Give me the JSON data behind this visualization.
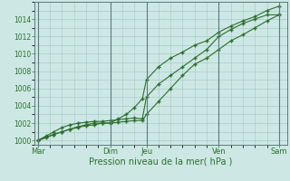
{
  "xlabel": "Pression niveau de la mer( hPa )",
  "bg_color": "#cde8e4",
  "grid_color": "#aaccca",
  "line_color": "#2d6e2d",
  "ylim": [
    999.5,
    1016.0
  ],
  "yticks": [
    1000,
    1002,
    1004,
    1006,
    1008,
    1010,
    1012,
    1014
  ],
  "day_labels": [
    "Mar",
    "Dim",
    "Jeu",
    "Ven",
    "Sam"
  ],
  "day_x": [
    0,
    72,
    108,
    180,
    240
  ],
  "vline_color": "#5a7a7a",
  "line1_x": [
    0,
    8,
    16,
    24,
    32,
    40,
    48,
    56,
    64,
    72,
    80,
    88,
    96,
    104,
    108,
    120,
    132,
    144,
    156,
    168,
    180,
    192,
    204,
    216,
    228,
    240
  ],
  "line1_y": [
    1000,
    1000.4,
    1000.7,
    1001.0,
    1001.3,
    1001.6,
    1001.8,
    1002.0,
    1002.0,
    1002.0,
    1002.1,
    1002.2,
    1002.3,
    1002.3,
    1003.0,
    1004.5,
    1006.0,
    1007.5,
    1008.8,
    1009.5,
    1010.5,
    1011.5,
    1012.2,
    1013.0,
    1013.8,
    1014.5
  ],
  "line2_x": [
    0,
    8,
    16,
    24,
    32,
    40,
    48,
    56,
    64,
    72,
    80,
    88,
    96,
    104,
    108,
    120,
    132,
    144,
    156,
    168,
    180,
    192,
    204,
    216,
    228,
    240
  ],
  "line2_y": [
    1000,
    1000.5,
    1001.0,
    1001.5,
    1001.8,
    1002.0,
    1002.1,
    1002.2,
    1002.2,
    1002.3,
    1002.4,
    1002.5,
    1002.6,
    1002.5,
    1005.0,
    1006.5,
    1007.5,
    1008.5,
    1009.5,
    1010.5,
    1012.0,
    1012.8,
    1013.5,
    1014.0,
    1014.5,
    1014.5
  ],
  "line3_x": [
    0,
    8,
    16,
    24,
    32,
    40,
    48,
    56,
    64,
    72,
    80,
    88,
    96,
    104,
    108,
    120,
    132,
    144,
    156,
    168,
    180,
    192,
    204,
    216,
    228,
    240
  ],
  "line3_y": [
    1000,
    1000.3,
    1000.7,
    1001.0,
    1001.3,
    1001.5,
    1001.7,
    1001.8,
    1002.0,
    1002.0,
    1002.5,
    1003.0,
    1003.8,
    1004.8,
    1007.0,
    1008.5,
    1009.5,
    1010.2,
    1011.0,
    1011.5,
    1012.5,
    1013.2,
    1013.8,
    1014.3,
    1015.0,
    1015.5
  ]
}
